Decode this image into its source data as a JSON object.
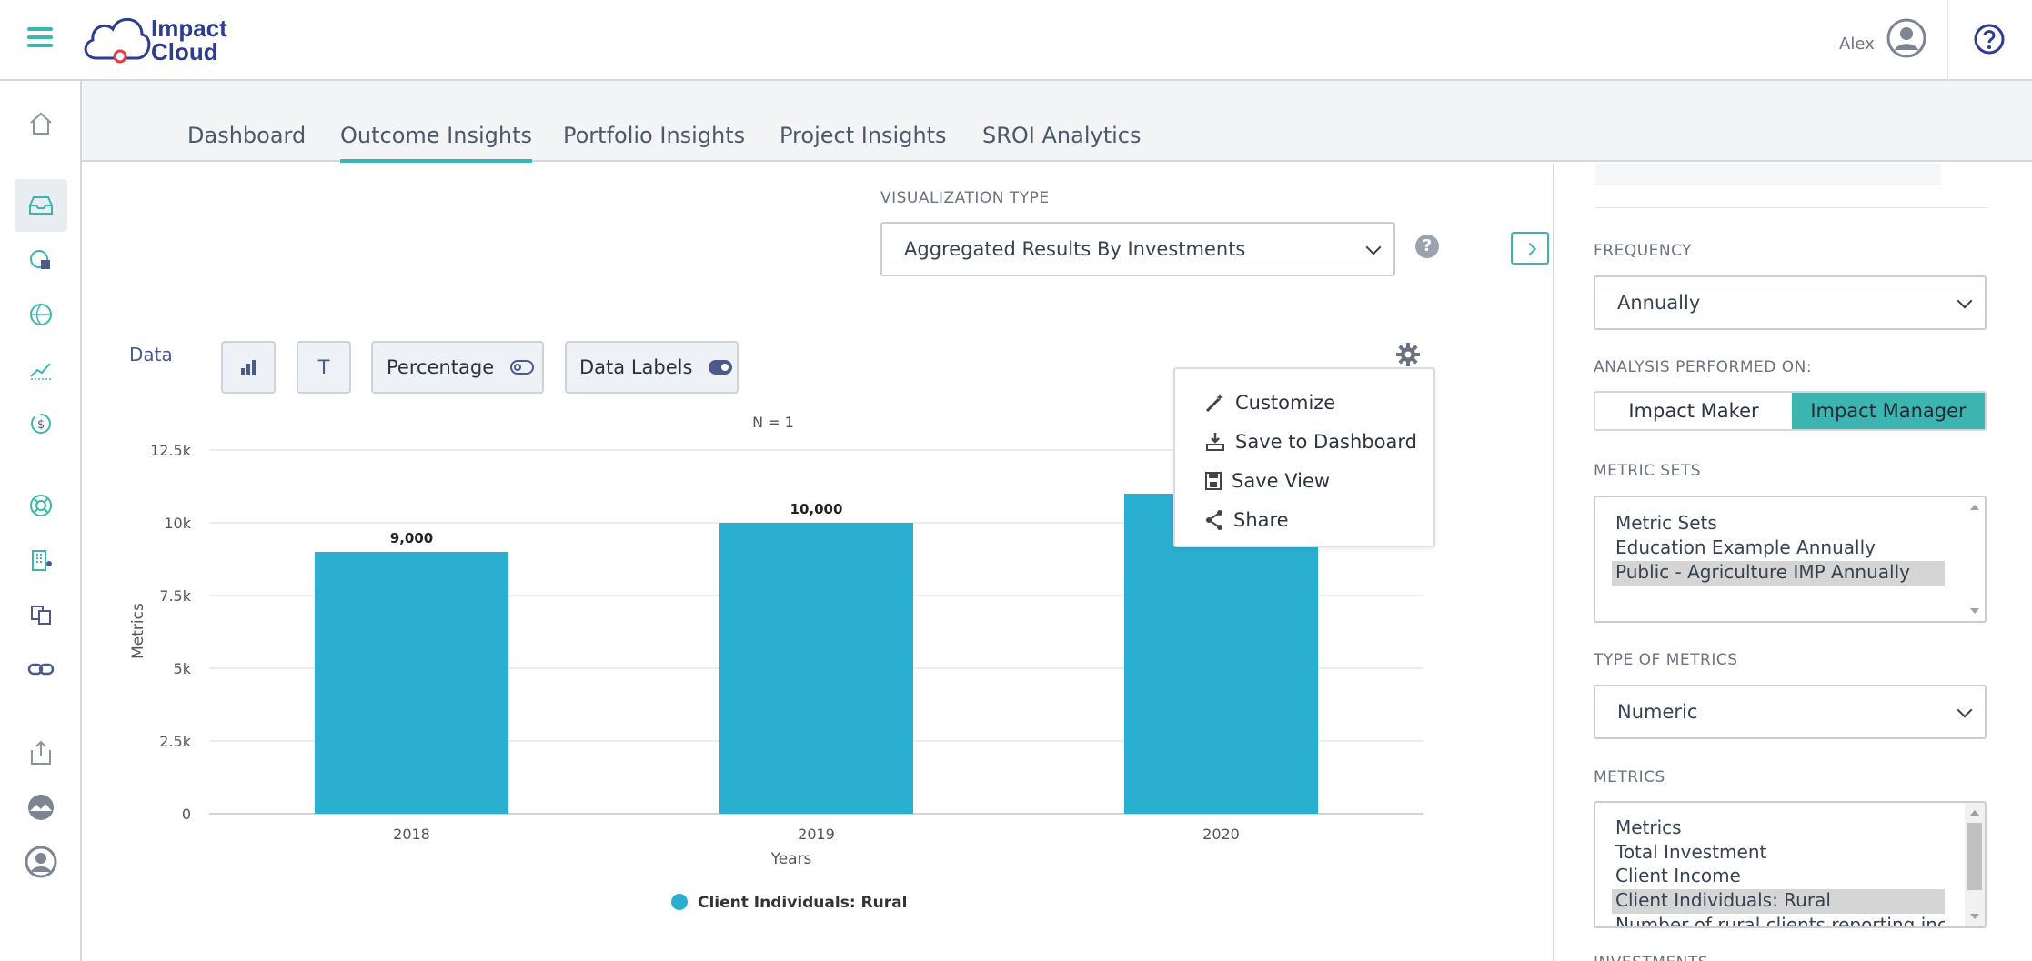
{
  "header": {
    "logo_text_line1": "Impact",
    "logo_text_line2": "Cloud",
    "logo_tm": "™",
    "user_name": "Alex"
  },
  "sidebar": {
    "items": [
      {
        "icon": "home-icon"
      },
      {
        "icon": "inbox-icon",
        "active": true
      },
      {
        "icon": "report-icon"
      },
      {
        "icon": "globe-icon"
      },
      {
        "icon": "trend-chart-icon"
      },
      {
        "icon": "refresh-dollar-icon"
      },
      {
        "icon": "lifebuoy-icon"
      },
      {
        "icon": "building-icon"
      },
      {
        "icon": "translate-icon"
      },
      {
        "icon": "link-icon"
      },
      {
        "icon": "upload-icon"
      },
      {
        "icon": "landscape-icon"
      },
      {
        "icon": "user-circle-icon"
      }
    ]
  },
  "tabs": [
    {
      "label": "Dashboard",
      "active": false
    },
    {
      "label": "Outcome Insights",
      "active": true
    },
    {
      "label": "Portfolio Insights",
      "active": false
    },
    {
      "label": "Project Insights",
      "active": false
    },
    {
      "label": "SROI Analytics",
      "active": false
    }
  ],
  "visualization": {
    "label": "VISUALIZATION TYPE",
    "selected": "Aggregated Results By Investments"
  },
  "toolbar": {
    "data_label": "Data",
    "text_button": "T",
    "percentage_label": "Percentage",
    "percentage_on": false,
    "data_labels_label": "Data Labels",
    "data_labels_on": true
  },
  "menu": {
    "items": [
      "Customize",
      "Save to Dashboard",
      "Save View",
      "Share"
    ]
  },
  "chart_data": {
    "type": "bar",
    "annotation": "N = 1",
    "categories": [
      "2018",
      "2019",
      "2020"
    ],
    "series": [
      {
        "name": "Client Individuals: Rural",
        "values": [
          9000,
          10000,
          11000
        ]
      }
    ],
    "value_labels": [
      "9,000",
      "10,000",
      ""
    ],
    "xlabel": "Years",
    "ylabel": "Metrics",
    "ylim": [
      0,
      12500
    ],
    "yticks": [
      0,
      2500,
      5000,
      7500,
      10000,
      12500
    ],
    "ytick_labels": [
      "0",
      "2.5k",
      "5k",
      "7.5k",
      "10k",
      "12.5k"
    ],
    "grid": true,
    "legend_position": "bottom",
    "color": "#2aafd0"
  },
  "right_panel": {
    "frequency_label": "FREQUENCY",
    "frequency_value": "Annually",
    "analysis_label": "ANALYSIS PERFORMED ON:",
    "analysis_options": [
      {
        "label": "Impact Maker",
        "active": false
      },
      {
        "label": "Impact Manager",
        "active": true
      }
    ],
    "metric_sets_label": "METRIC SETS",
    "metric_sets": [
      {
        "label": "Metric Sets",
        "selected": false
      },
      {
        "label": "Education Example Annually",
        "selected": false
      },
      {
        "label": "Public - Agriculture IMP Annually",
        "selected": true
      }
    ],
    "type_label": "TYPE OF METRICS",
    "type_value": "Numeric",
    "metrics_label": "METRICS",
    "metrics": [
      {
        "label": "Metrics",
        "selected": false
      },
      {
        "label": "Total Investment",
        "selected": false
      },
      {
        "label": "Client Income",
        "selected": false
      },
      {
        "label": "Client Individuals: Rural",
        "selected": true
      },
      {
        "label": "Number of rural clients reporting increa",
        "selected": false
      }
    ],
    "next_label": "INVESTMENTS"
  },
  "colors": {
    "accent": "#3cb5b0",
    "brand": "#2d3d8f",
    "bar": "#2aafd0"
  }
}
